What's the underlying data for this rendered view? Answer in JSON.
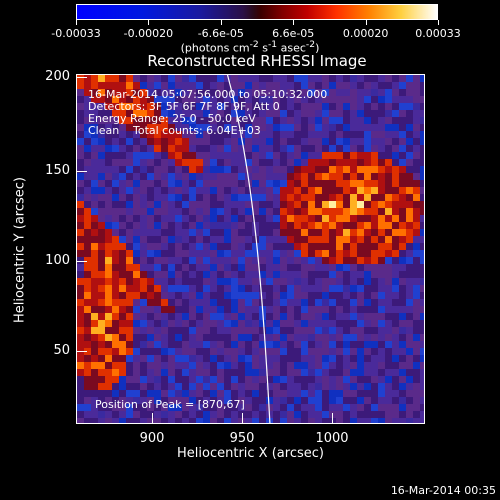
{
  "colorbar": {
    "tick_labels": [
      "-0.00033",
      "-0.00020",
      "-6.6e-05",
      "6.6e-05",
      "0.00020",
      "0.00033"
    ],
    "units_prefix": "(photons cm",
    "units_exp1": "-2",
    "units_mid": " s",
    "units_exp2": "-1",
    "units_mid2": " asec",
    "units_exp3": "-2",
    "units_suffix": ")",
    "color_low": "#0000ff",
    "color_high": "#ffffff"
  },
  "title": "Reconstructed RHESSI Image",
  "overlay": {
    "time_range": "16-Mar-2014 05:07:56.000 to 05:10:32.000",
    "detectors": "Detectors: 3F 5F 6F 7F 8F 9F, Att 0",
    "energy": "Energy Range: 25.0 - 50.0 keV",
    "method": "Clean",
    "counts": "Total counts: 6.04E+03",
    "peak": "Position of Peak = [870,67]"
  },
  "axes": {
    "x_label": "Heliocentric X (arcsec)",
    "y_label": "Heliocentric Y (arcsec)",
    "x_ticks": [
      "900",
      "950",
      "1000"
    ],
    "y_ticks": [
      "50",
      "100",
      "150",
      "200"
    ]
  },
  "footer": {
    "timestamp": "16-Mar-2014 00:35"
  }
}
